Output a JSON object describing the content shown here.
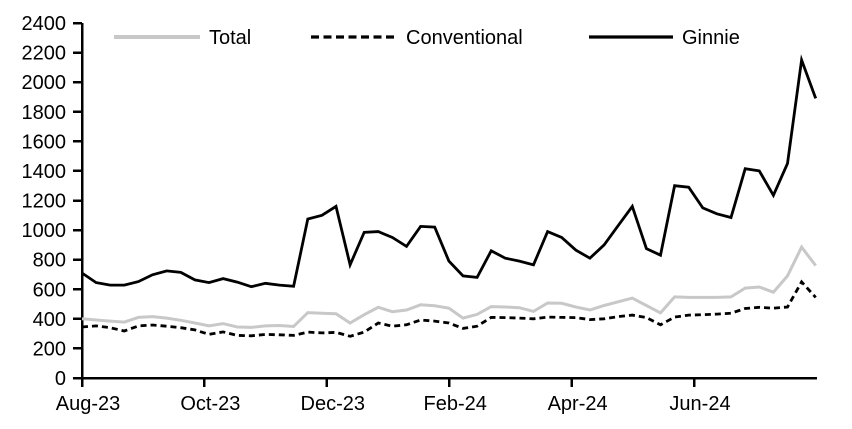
{
  "chart_data": {
    "type": "line",
    "title": "",
    "xlabel": "",
    "ylabel": "",
    "frequency": "weekly",
    "x_axis": {
      "tick_labels": [
        "Aug-23",
        "Oct-23",
        "Dec-23",
        "Feb-24",
        "Apr-24",
        "Jun-24"
      ]
    },
    "y_axis": {
      "min": 0,
      "max": 2400,
      "step": 200,
      "tick_labels": [
        "0",
        "200",
        "400",
        "600",
        "800",
        "1000",
        "1200",
        "1400",
        "1600",
        "1800",
        "2000",
        "2200",
        "2400"
      ]
    },
    "legend": {
      "position": "top",
      "entries": [
        "Total",
        "Conventional",
        "Ginnie"
      ]
    },
    "colors": {
      "total": "#c8c8c8",
      "conventional": "#000000",
      "ginnie": "#000000",
      "axis": "#000000"
    },
    "series": [
      {
        "name": "Total",
        "style": "solid",
        "color": "#c8c8c8",
        "values": [
          400,
          392,
          385,
          378,
          410,
          415,
          405,
          390,
          372,
          352,
          368,
          345,
          342,
          352,
          355,
          348,
          442,
          438,
          435,
          372,
          428,
          478,
          448,
          460,
          495,
          488,
          472,
          405,
          430,
          483,
          480,
          475,
          450,
          507,
          505,
          480,
          460,
          490,
          515,
          540,
          490,
          440,
          548,
          545,
          545,
          545,
          548,
          608,
          615,
          580,
          690,
          885,
          760
        ]
      },
      {
        "name": "Conventional",
        "style": "dashed",
        "color": "#000000",
        "values": [
          345,
          352,
          340,
          318,
          352,
          358,
          350,
          340,
          325,
          295,
          312,
          288,
          285,
          295,
          292,
          288,
          310,
          305,
          308,
          282,
          310,
          372,
          350,
          360,
          392,
          385,
          372,
          335,
          350,
          410,
          408,
          405,
          400,
          412,
          410,
          408,
          395,
          400,
          415,
          425,
          408,
          360,
          412,
          425,
          428,
          432,
          438,
          470,
          478,
          472,
          480,
          650,
          545
        ]
      },
      {
        "name": "Ginnie",
        "style": "solid",
        "color": "#000000",
        "values": [
          710,
          645,
          628,
          628,
          652,
          698,
          724,
          714,
          663,
          645,
          672,
          648,
          617,
          640,
          628,
          620,
          1075,
          1100,
          1160,
          765,
          985,
          990,
          950,
          890,
          1025,
          1020,
          790,
          690,
          680,
          860,
          810,
          790,
          765,
          990,
          950,
          865,
          810,
          900,
          1030,
          1160,
          875,
          830,
          1300,
          1290,
          1150,
          1110,
          1085,
          1415,
          1400,
          1235,
          1450,
          2150,
          1890
        ]
      }
    ]
  }
}
